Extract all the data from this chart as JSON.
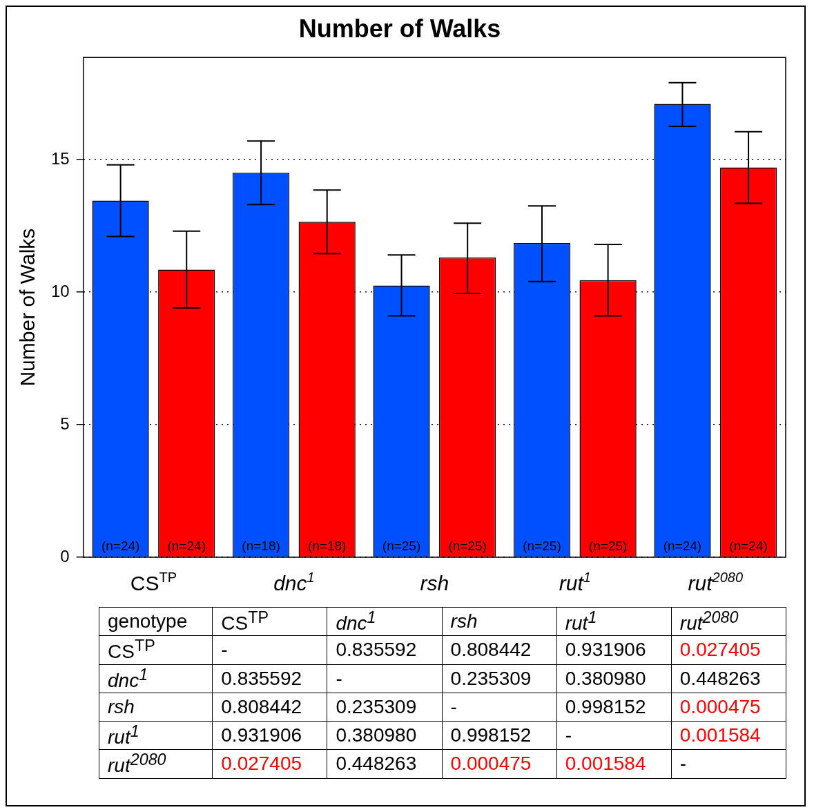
{
  "chart_data": [
    {
      "type": "bar",
      "title": "Number of Walks",
      "ylabel": "Number of Walks",
      "categories": [
        "CS$^{TP}$",
        "dnc$^{1}$",
        "rsh",
        "rut$^{1}$",
        "rut$^{2080}$"
      ],
      "series": [
        {
          "color": "#0050ff",
          "values": [
            13.45,
            14.5,
            10.25,
            11.85,
            17.1
          ],
          "errors": [
            [
              12.1,
              14.8
            ],
            [
              13.3,
              15.7
            ],
            [
              9.1,
              11.4
            ],
            [
              10.4,
              13.25
            ],
            [
              16.25,
              17.9
            ]
          ]
        },
        {
          "color": "#ff0000",
          "values": [
            10.85,
            12.65,
            11.3,
            10.45,
            14.7
          ],
          "errors": [
            [
              9.4,
              12.3
            ],
            [
              11.45,
              13.85
            ],
            [
              9.95,
              12.6
            ],
            [
              9.1,
              11.8
            ],
            [
              13.35,
              16.05
            ]
          ]
        }
      ],
      "ylim": [
        0,
        18.85
      ],
      "yticks": [
        0,
        5,
        10,
        15
      ],
      "grid": "y",
      "annotations": [
        "(n=24)",
        "(n=24)",
        "(n=18)",
        "(n=18)",
        "(n=25)",
        "(n=25)",
        "(n=25)",
        "(n=25)",
        "(n=24)",
        "(n=24)"
      ]
    },
    {
      "type": "other",
      "ylabel": "genotype",
      "categories": [
        "CS$^{TP}$",
        "dnc$^{1}$",
        "rsh",
        "rut$^{1}$",
        "rut$^{2080}$"
      ],
      "y_categories": [
        "CS$^{TP}$",
        "dnc$^{1}$",
        "rsh",
        "rut$^{1}$",
        "rut$^{2080}$"
      ],
      "cell_labels": [
        [
          "-",
          "0.835592",
          "0.808442",
          "0.931906",
          "0.027405"
        ],
        [
          "0.835592",
          "-",
          "0.235309",
          "0.380980",
          "0.448263"
        ],
        [
          "0.808442",
          "0.235309",
          "-",
          "0.998152",
          "0.000475"
        ],
        [
          "0.931906",
          "0.380980",
          "0.998152",
          "-",
          "0.001584"
        ],
        [
          "0.027405",
          "0.448263",
          "0.000475",
          "0.001584",
          "-"
        ]
      ],
      "colors": [
        [
          "#000000",
          "#000000",
          "#000000",
          "#000000",
          "#ff0000"
        ],
        [
          "#000000",
          "#000000",
          "#000000",
          "#000000",
          "#000000"
        ],
        [
          "#000000",
          "#000000",
          "#000000",
          "#000000",
          "#ff0000"
        ],
        [
          "#000000",
          "#000000",
          "#000000",
          "#000000",
          "#ff0000"
        ],
        [
          "#ff0000",
          "#000000",
          "#ff0000",
          "#ff0000",
          "#000000"
        ]
      ]
    }
  ]
}
